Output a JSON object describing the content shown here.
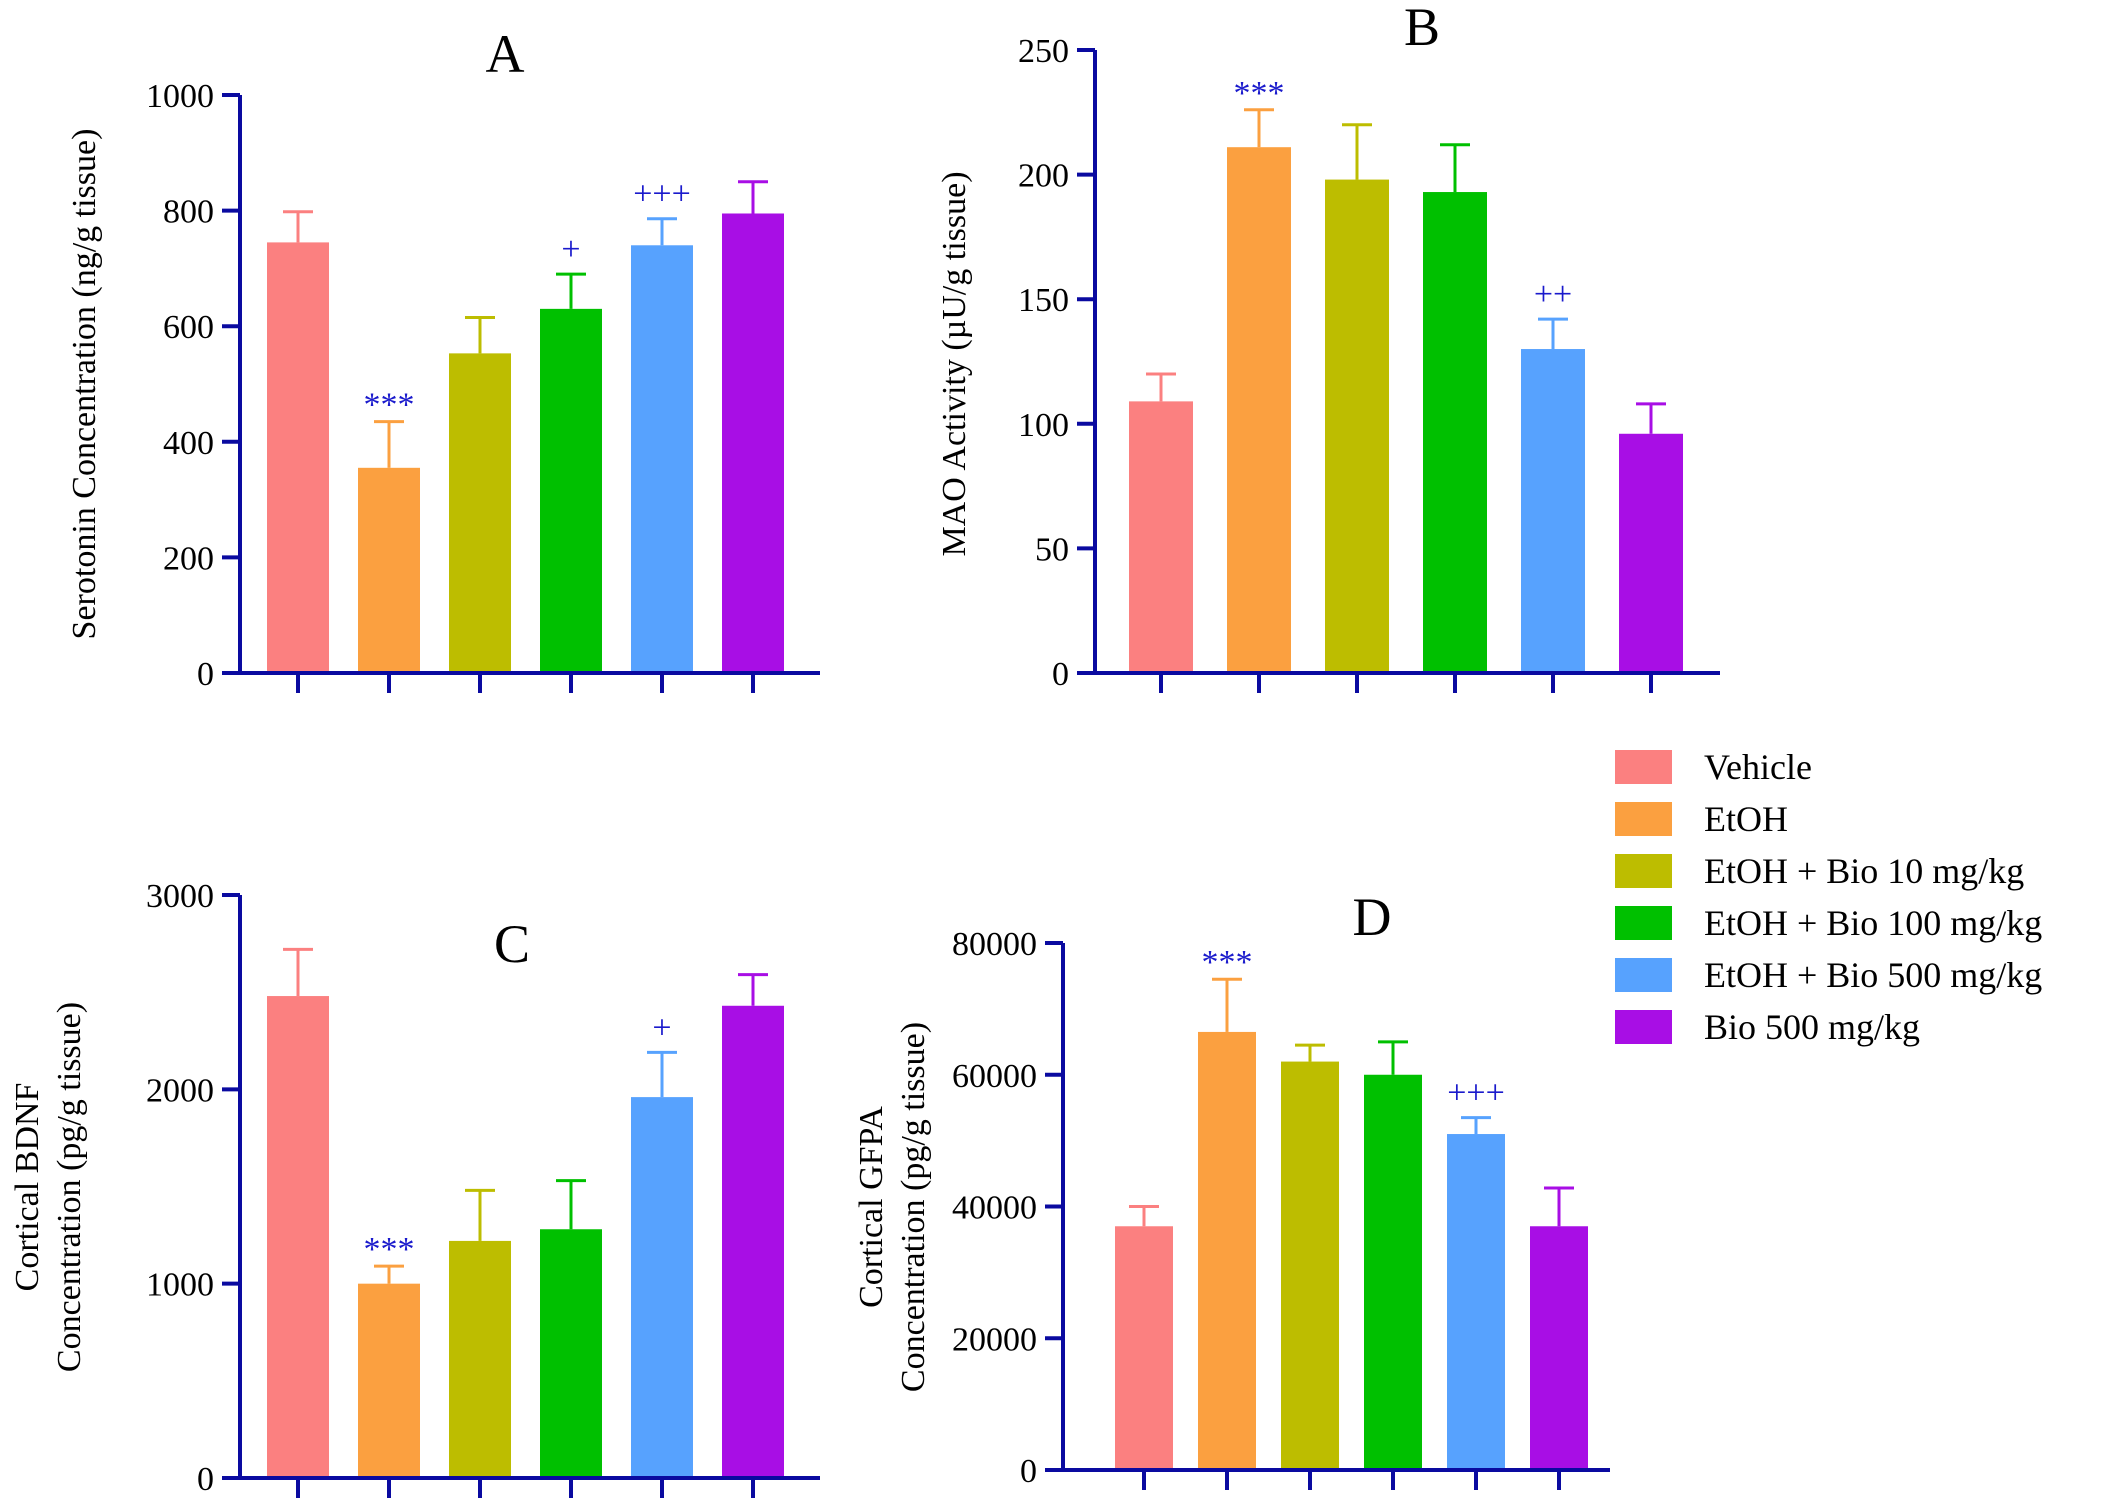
{
  "colors": {
    "axis": "#0a0aa0",
    "significance": "#1a1acc",
    "groups": [
      "#fb8080",
      "#fba040",
      "#bdbd00",
      "#00c000",
      "#57a2fe",
      "#a80ee5"
    ]
  },
  "legend": {
    "entries": [
      "Vehicle",
      "EtOH",
      "EtOH + Bio 10 mg/kg",
      "EtOH + Bio 100 mg/kg",
      "EtOH + Bio 500 mg/kg",
      "Bio 500 mg/kg"
    ]
  },
  "chart_data": [
    {
      "type": "bar",
      "panel": "A",
      "ylabel": [
        "Serotonin Concentration (ng/g tissue)"
      ],
      "categories": [
        "Vehicle",
        "EtOH",
        "EtOH + Bio 10 mg/kg",
        "EtOH + Bio 100 mg/kg",
        "EtOH + Bio 500 mg/kg",
        "Bio 500 mg/kg"
      ],
      "values": [
        745,
        355,
        553,
        630,
        740,
        795
      ],
      "errors": [
        53,
        80,
        62,
        60,
        46,
        55
      ],
      "significance": [
        "",
        "***",
        "",
        "+",
        "+++",
        ""
      ],
      "ylim": [
        0,
        1000
      ],
      "yticks": [
        "0",
        "200",
        "400",
        "600",
        "800",
        "1000"
      ]
    },
    {
      "type": "bar",
      "panel": "B",
      "ylabel": [
        "MAO Activity (µU/g tissue)"
      ],
      "categories": [
        "Vehicle",
        "EtOH",
        "EtOH + Bio 10 mg/kg",
        "EtOH + Bio 100 mg/kg",
        "EtOH + Bio 500 mg/kg",
        "Bio 500 mg/kg"
      ],
      "values": [
        109,
        211,
        198,
        193,
        130,
        96
      ],
      "errors": [
        11,
        15,
        22,
        19,
        12,
        12
      ],
      "significance": [
        "",
        "***",
        "",
        "",
        "++",
        ""
      ],
      "ylim": [
        0,
        250
      ],
      "yticks": [
        "0",
        "50",
        "100",
        "150",
        "200",
        "250"
      ]
    },
    {
      "type": "bar",
      "panel": "C",
      "ylabel": [
        "Cortical BDNF",
        "Concentration (pg/g tissue)"
      ],
      "categories": [
        "Vehicle",
        "EtOH",
        "EtOH + Bio 10 mg/kg",
        "EtOH + Bio 100 mg/kg",
        "EtOH + Bio 500 mg/kg",
        "Bio 500 mg/kg"
      ],
      "values": [
        2480,
        1000,
        1220,
        1280,
        1960,
        2430
      ],
      "errors": [
        240,
        90,
        260,
        250,
        230,
        160
      ],
      "significance": [
        "",
        "***",
        "",
        "",
        "+",
        ""
      ],
      "ylim": [
        0,
        3000
      ],
      "yticks": [
        "0",
        "1000",
        "2000",
        "3000"
      ]
    },
    {
      "type": "bar",
      "panel": "D",
      "ylabel": [
        "Cortical GFPA",
        "Concentration (pg/g tissue)"
      ],
      "categories": [
        "Vehicle",
        "EtOH",
        "EtOH + Bio 10 mg/kg",
        "EtOH + Bio 100 mg/kg",
        "EtOH + Bio 500 mg/kg",
        "Bio 500 mg/kg"
      ],
      "values": [
        37000,
        66500,
        62000,
        60000,
        51000,
        37000
      ],
      "errors": [
        3000,
        8000,
        2500,
        5000,
        2500,
        5800
      ],
      "significance": [
        "",
        "***",
        "",
        "",
        "+++",
        ""
      ],
      "ylim": [
        0,
        80000
      ],
      "yticks": [
        "0",
        "20000",
        "40000",
        "60000",
        "80000"
      ]
    }
  ]
}
